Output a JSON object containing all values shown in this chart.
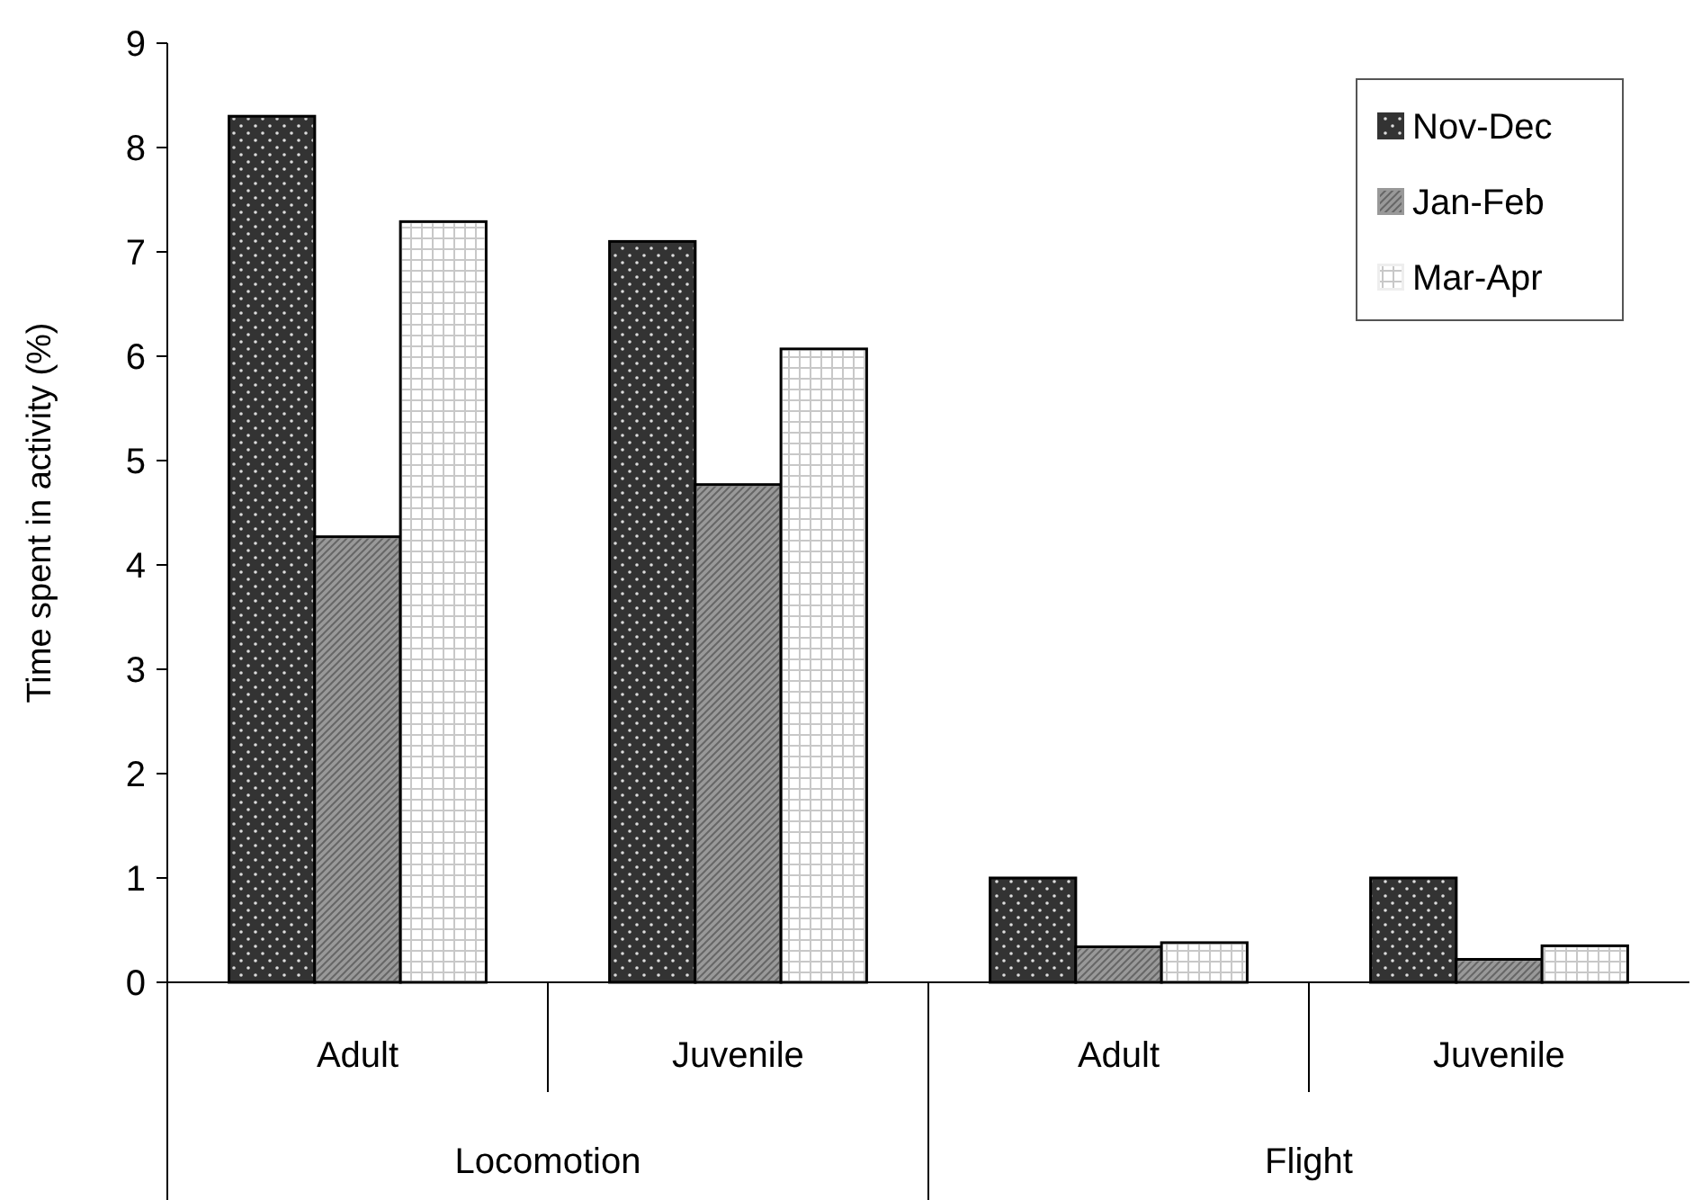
{
  "chart_data": {
    "type": "bar",
    "ylabel": "Time spent in activity (%)",
    "categories": [
      "Adult",
      "Juvenile",
      "Adult",
      "Juvenile"
    ],
    "annotations": [
      "Locomotion",
      "Flight"
    ],
    "series": [
      {
        "name": "Nov-Dec",
        "color": "#333333",
        "values": [
          8.3,
          7.1,
          1.0,
          1.0
        ]
      },
      {
        "name": "Jan-Feb",
        "color": "#999999",
        "values": [
          4.27,
          4.77,
          0.34,
          0.22
        ]
      },
      {
        "name": "Mar-Apr",
        "color": "#eeeeee",
        "values": [
          7.29,
          6.07,
          0.38,
          0.35
        ]
      }
    ],
    "ylim": [
      0,
      9
    ],
    "yticks": [
      0,
      1,
      2,
      3,
      4,
      5,
      6,
      7,
      8,
      9
    ],
    "grid": false,
    "legend": "top right"
  }
}
